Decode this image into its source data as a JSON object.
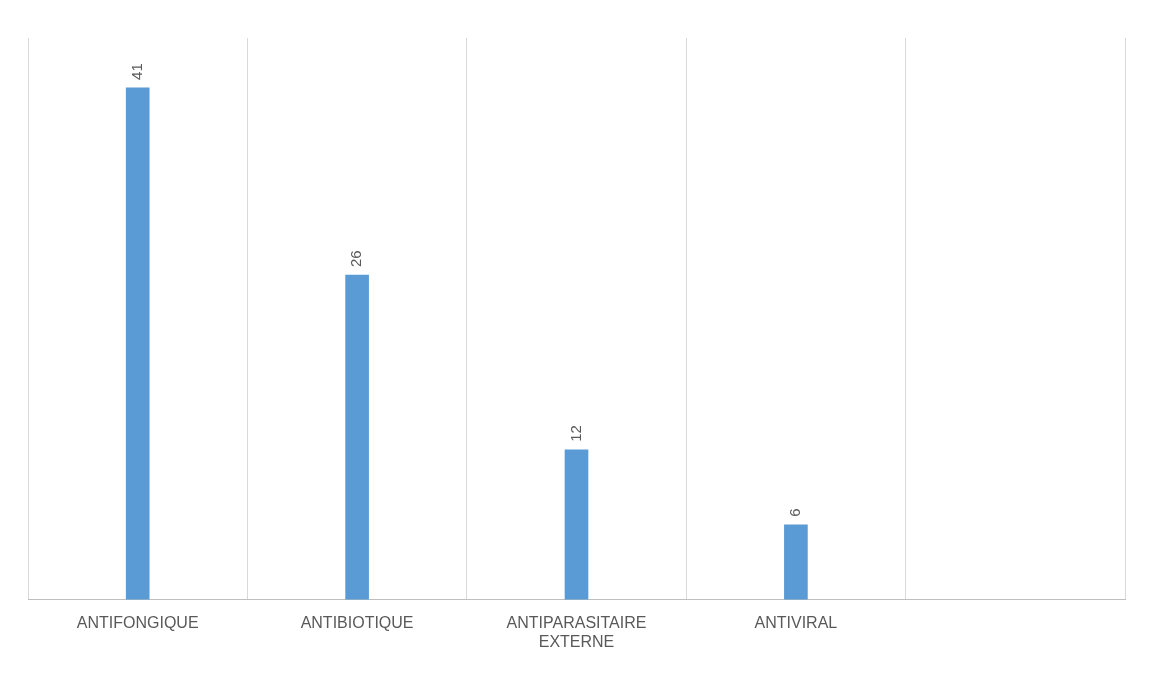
{
  "chart_data": {
    "type": "bar",
    "categories": [
      "ANTIFONGIQUE",
      "ANTIBIOTIQUE",
      "ANTIPARASITAIRE EXTERNE",
      "ANTIVIRAL",
      null
    ],
    "values": [
      41,
      26,
      12,
      6,
      null
    ],
    "color": "#5b9bd5",
    "data_labels": true,
    "grid": "x",
    "legend": false
  }
}
